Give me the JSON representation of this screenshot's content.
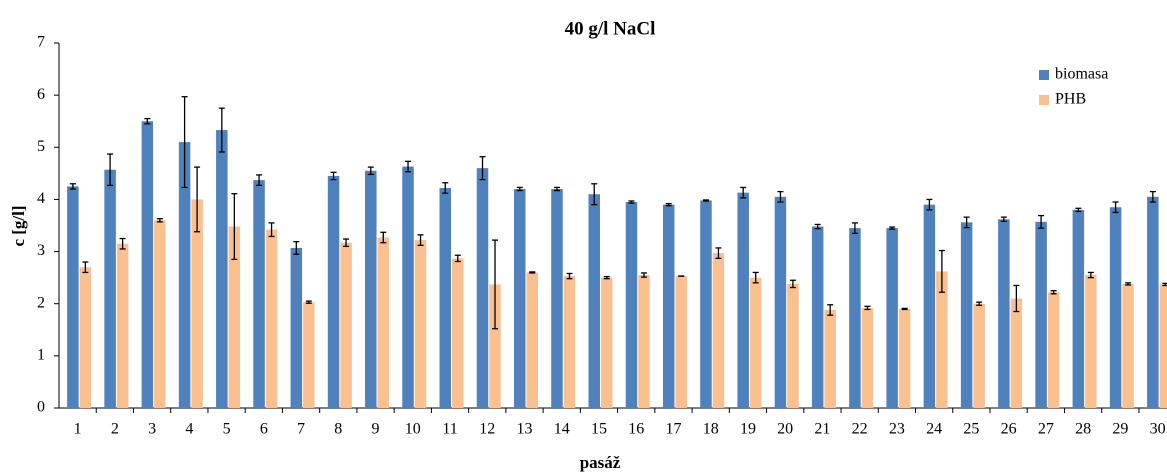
{
  "chart_data": {
    "type": "bar",
    "title": "40 g/l NaCl",
    "x_label": "pasáž",
    "y_label": "c [g/l]",
    "categories": [
      "1",
      "2",
      "3",
      "4",
      "5",
      "6",
      "7",
      "8",
      "9",
      "10",
      "11",
      "12",
      "13",
      "14",
      "15",
      "16",
      "17",
      "18",
      "19",
      "20",
      "21",
      "22",
      "23",
      "24",
      "25",
      "26",
      "27",
      "28",
      "29",
      "30"
    ],
    "series": [
      {
        "name": "biomasa",
        "color": "#4f81bd",
        "values": [
          4.25,
          4.57,
          5.5,
          5.1,
          5.33,
          4.37,
          3.07,
          4.45,
          4.55,
          4.63,
          4.22,
          4.6,
          4.2,
          4.2,
          4.1,
          3.95,
          3.9,
          3.98,
          4.13,
          4.05,
          3.48,
          3.45,
          3.45,
          3.9,
          3.56,
          3.62,
          3.57,
          3.8,
          3.85,
          4.05
        ],
        "errors": [
          0.05,
          0.3,
          0.05,
          0.87,
          0.42,
          0.1,
          0.12,
          0.07,
          0.07,
          0.1,
          0.1,
          0.22,
          0.03,
          0.03,
          0.2,
          0.02,
          0.02,
          0.01,
          0.1,
          0.1,
          0.04,
          0.1,
          0.02,
          0.1,
          0.1,
          0.04,
          0.12,
          0.03,
          0.1,
          0.1
        ]
      },
      {
        "name": "PHB",
        "color": "#fac090",
        "values": [
          2.7,
          3.15,
          3.6,
          4.0,
          3.48,
          3.42,
          2.03,
          3.17,
          3.27,
          3.22,
          2.87,
          2.37,
          2.6,
          2.53,
          2.5,
          2.55,
          2.53,
          2.97,
          2.5,
          2.38,
          1.88,
          1.92,
          1.9,
          2.62,
          2.0,
          2.1,
          2.22,
          2.55,
          2.38,
          2.37
        ],
        "errors": [
          0.1,
          0.1,
          0.03,
          0.62,
          0.63,
          0.13,
          0.02,
          0.07,
          0.1,
          0.1,
          0.06,
          0.85,
          0.01,
          0.05,
          0.02,
          0.04,
          0,
          0.1,
          0.1,
          0.07,
          0.1,
          0.03,
          0.01,
          0.4,
          0.03,
          0.25,
          0.03,
          0.05,
          0.02,
          0.02
        ]
      }
    ],
    "ylim": [
      0,
      7
    ],
    "yticks": [
      0,
      1,
      2,
      3,
      4,
      5,
      6,
      7
    ],
    "grid": false,
    "legend": "top-right"
  }
}
